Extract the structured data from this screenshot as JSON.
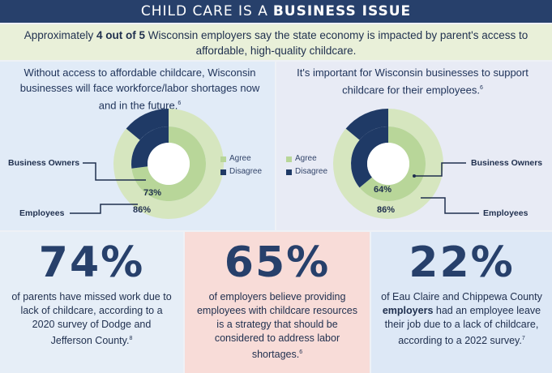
{
  "header": {
    "title_light": "CHILD CARE IS A",
    "title_bold": "BUSINESS ISSUE"
  },
  "subtitle": {
    "pre": "Approximately ",
    "bold": "4 out of 5",
    "post": " Wisconsin employers say the state economy is impacted by parent's access to affordable, high-quality childcare."
  },
  "left_panel": {
    "text": "Without access to affordable childcare, Wisconsin businesses will face workforce/labor shortages now and in the future.",
    "footnote": "6",
    "label_outer": "Business Owners",
    "label_inner": "Employees",
    "pct_business_owners": "73%",
    "pct_employees": "86%",
    "legend": [
      {
        "label": "Agree",
        "color": "#b8d699"
      },
      {
        "label": "Disagree",
        "color": "#1f3a66"
      }
    ]
  },
  "right_panel": {
    "text": "It's important for Wisconsin businesses to support childcare for their employees.",
    "footnote": "6",
    "label_outer": "Business Owners",
    "label_inner": "Employees",
    "pct_business_owners": "64%",
    "pct_employees": "86%",
    "legend": [
      {
        "label": "Agree",
        "color": "#b8d699"
      },
      {
        "label": "Disagree",
        "color": "#1f3a66"
      }
    ]
  },
  "chart_data": [
    {
      "type": "pie",
      "series": [
        {
          "name": "Business Owners",
          "values": [
            73,
            27
          ]
        },
        {
          "name": "Employees",
          "values": [
            86,
            14
          ]
        }
      ],
      "categories": [
        "Agree",
        "Disagree"
      ]
    },
    {
      "type": "pie",
      "series": [
        {
          "name": "Business Owners",
          "values": [
            64,
            36
          ]
        },
        {
          "name": "Employees",
          "values": [
            86,
            14
          ]
        }
      ],
      "categories": [
        "Agree",
        "Disagree"
      ]
    }
  ],
  "stats": [
    {
      "number": "74%",
      "text_pre": "of parents have missed work due to lack of childcare, according to a 2020 survey of Dodge and Jefferson County.",
      "footnote": "8",
      "text_bold": "",
      "text_post": ""
    },
    {
      "number": "65%",
      "text_pre": "of employers believe providing employees with childcare resources is a strategy that should be considered to address labor shortages.",
      "footnote": "6",
      "text_bold": "",
      "text_post": ""
    },
    {
      "number": "22%",
      "text_pre": "of Eau Claire and Chippewa County ",
      "text_bold": "employers",
      "text_post": " had an employee leave their job due to a lack of childcare, according to a 2022 survey.",
      "footnote": "7"
    }
  ]
}
